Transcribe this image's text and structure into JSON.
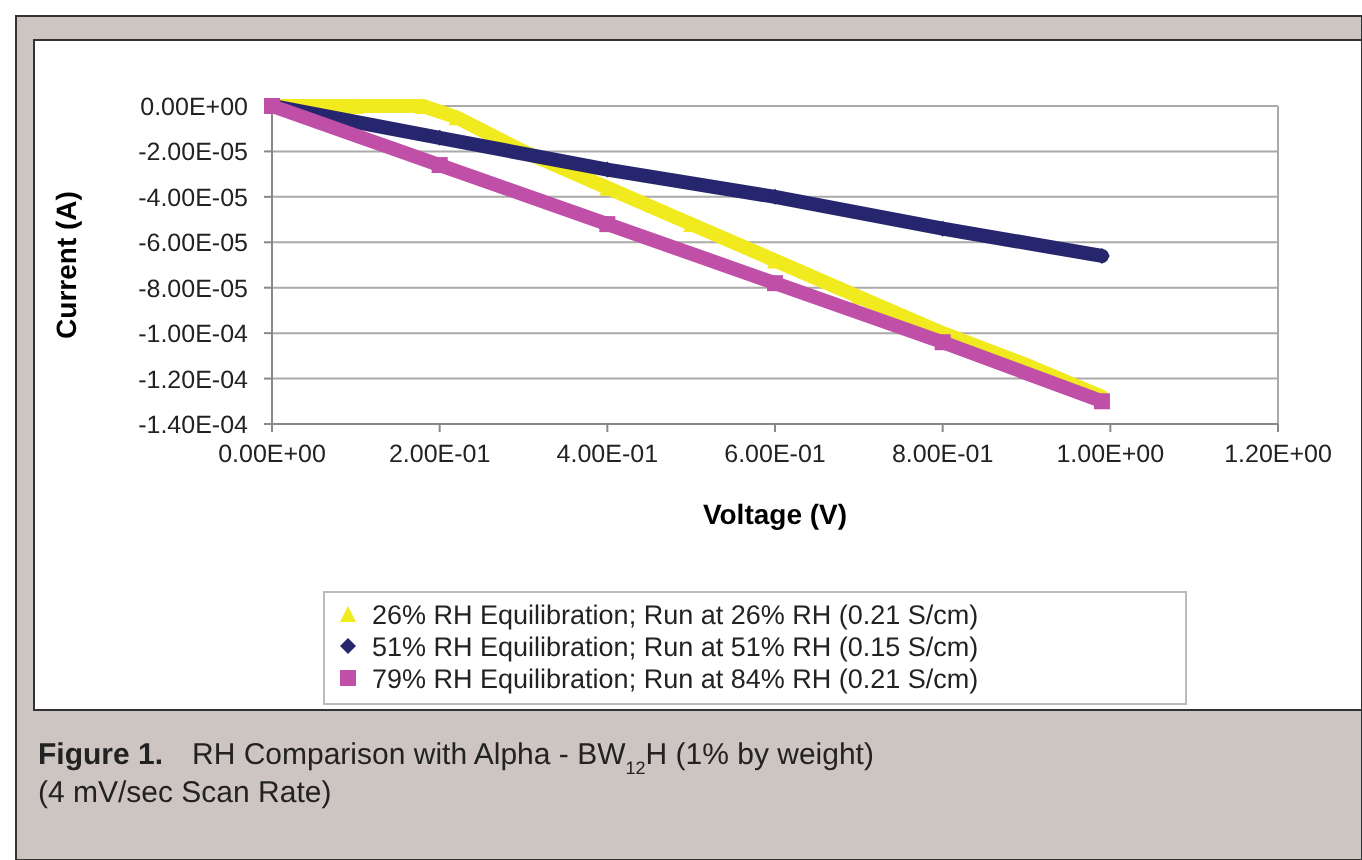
{
  "chart_data": {
    "type": "line",
    "xlabel": "Voltage (V)",
    "ylabel": "Current (A)",
    "annotations": [
      "Figure 1.",
      "RH Comparison with Alpha - BW$_{12}$H (1% by weight)",
      "(4 mV/sec Scan Rate)"
    ],
    "xlim": [
      0,
      1.2
    ],
    "xticks": [
      {
        "value": 0,
        "label": "0.00E+00"
      },
      {
        "value": 0.2,
        "label": "2.00E-01"
      },
      {
        "value": 0.4,
        "label": "4.00E-01"
      },
      {
        "value": 0.6,
        "label": "6.00E-01"
      },
      {
        "value": 0.8,
        "label": "8.00E-01"
      },
      {
        "value": 1,
        "label": "1.00E+00"
      },
      {
        "value": 1.2,
        "label": "1.20E+00"
      }
    ],
    "ylim": [
      -0.00014,
      0
    ],
    "yticks": [
      {
        "value": 0,
        "label": "0.00E+00"
      },
      {
        "value": -2e-05,
        "label": "-2.00E-05"
      },
      {
        "value": -4e-05,
        "label": "-4.00E-05"
      },
      {
        "value": -6e-05,
        "label": "-6.00E-05"
      },
      {
        "value": -8e-05,
        "label": "-8.00E-05"
      },
      {
        "value": -0.0001,
        "label": "-1.00E-04"
      },
      {
        "value": -0.00012,
        "label": "-1.20E-04"
      },
      {
        "value": -0.00014,
        "label": "-1.40E-04"
      }
    ],
    "grid": "y",
    "legend": "bottom",
    "series": [
      {
        "name": "26% RH Equilibration; Run at 26% RH (0.21 S/cm)",
        "color": "#f0ea1e",
        "marker": "triangle",
        "x": [
          0,
          0.1,
          0.18,
          0.22,
          0.3,
          0.4,
          0.5,
          0.6,
          0.7,
          0.8,
          0.9,
          0.99
        ],
        "values": [
          0,
          0,
          0,
          -5e-06,
          -2e-05,
          -3.6e-05,
          -5.2e-05,
          -6.8e-05,
          -8.4e-05,
          -0.0001,
          -0.000114,
          -0.000128
        ]
      },
      {
        "name": "51% RH Equilibration; Run at 51% RH (0.15 S/cm)",
        "color": "#26266e",
        "marker": "diamond",
        "x": [
          0,
          0.2,
          0.4,
          0.6,
          0.8,
          0.99
        ],
        "values": [
          0,
          -1.4e-05,
          -2.8e-05,
          -4e-05,
          -5.4e-05,
          -6.6e-05
        ]
      },
      {
        "name": "79% RH Equilibration; Run at 84% RH (0.21 S/cm)",
        "color": "#c04fa8",
        "marker": "square",
        "x": [
          0,
          0.2,
          0.4,
          0.6,
          0.8,
          0.99
        ],
        "values": [
          0,
          -2.6e-05,
          -5.2e-05,
          -7.8e-05,
          -0.000104,
          -0.00013
        ]
      }
    ]
  }
}
